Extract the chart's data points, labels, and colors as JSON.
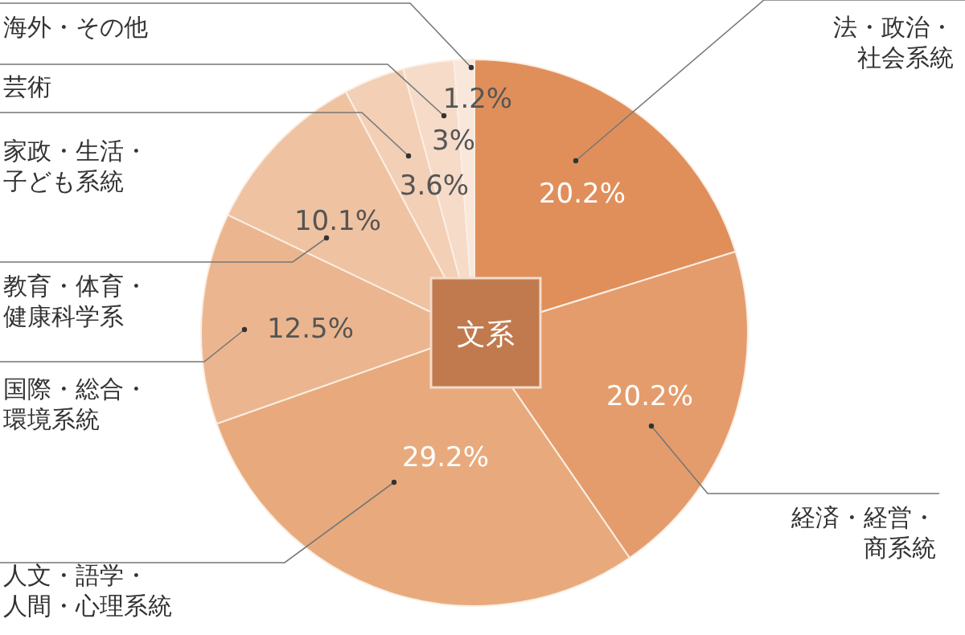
{
  "chart_data": {
    "type": "pie",
    "categories": [
      "法・政治・社会系統",
      "経済・経営・商系統",
      "人文・語学・人間・心理系統",
      "国際・総合・環境系統",
      "教育・体育・健康科学系",
      "家政・生活・子ども系統",
      "芸術",
      "海外・その他"
    ],
    "values": [
      20.2,
      20.2,
      29.2,
      12.5,
      10.1,
      3.6,
      3,
      1.2
    ],
    "value_labels": [
      "20.2%",
      "20.2%",
      "29.2%",
      "12.5%",
      "10.1%",
      "3.6%",
      "3%",
      "1.2%"
    ],
    "colors": [
      "#e08f5b",
      "#e49c6c",
      "#e8aa7c",
      "#ebb68f",
      "#efc3a2",
      "#f2cfb5",
      "#f5dbc8",
      "#f8e7da"
    ],
    "annotations": [
      "文系"
    ]
  }
}
